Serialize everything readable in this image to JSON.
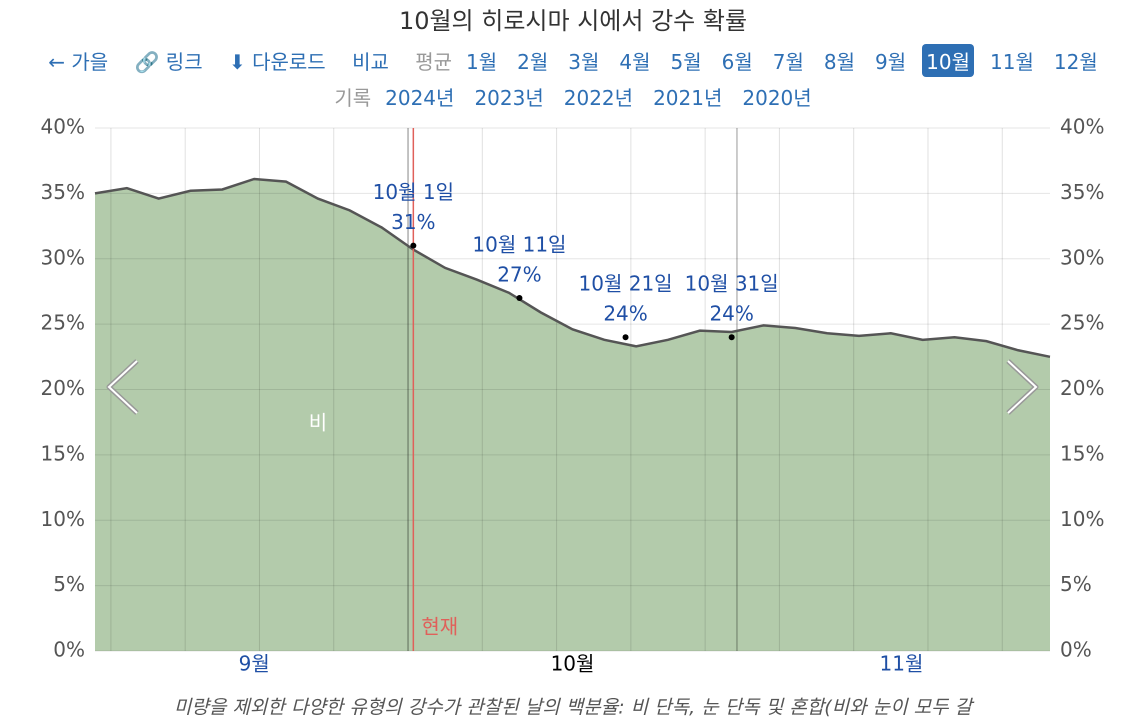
{
  "nav": {
    "back": "가을",
    "link": "링크",
    "download": "다운로드",
    "compare": "비교",
    "average_label": "평균",
    "months": [
      "1월",
      "2월",
      "3월",
      "4월",
      "5월",
      "6월",
      "7월",
      "8월",
      "9월",
      "10월",
      "11월",
      "12월"
    ],
    "selected": "10월",
    "history_label": "기록",
    "years": [
      "2024년",
      "2023년",
      "2022년",
      "2021년",
      "2020년"
    ]
  },
  "chart_data": {
    "type": "area",
    "title": "10월의 히로시마 시에서 강수 확률",
    "xlim": [
      0,
      90
    ],
    "xticks": [
      {
        "value": 15,
        "label": "9월"
      },
      {
        "value": 45,
        "label": "10월"
      },
      {
        "value": 76,
        "label": "11월"
      }
    ],
    "x_gridlines": [
      1.5,
      8.5,
      15.5,
      22.5,
      29.5,
      36.5,
      43.5,
      50.5,
      57.5,
      64.5,
      71.5,
      78.5,
      85.5
    ],
    "month_boundaries": [
      29.5,
      60.5
    ],
    "ylim": [
      0,
      40
    ],
    "yticks": [
      {
        "value": 0,
        "label": "0%"
      },
      {
        "value": 5,
        "label": "5%"
      },
      {
        "value": 10,
        "label": "10%"
      },
      {
        "value": 15,
        "label": "15%"
      },
      {
        "value": 20,
        "label": "20%"
      },
      {
        "value": 25,
        "label": "25%"
      },
      {
        "value": 30,
        "label": "30%"
      },
      {
        "value": 35,
        "label": "35%"
      },
      {
        "value": 40,
        "label": "40%"
      }
    ],
    "grid": true,
    "x": [
      0,
      3,
      6,
      9,
      12,
      15,
      18,
      21,
      24,
      27,
      30,
      33,
      36,
      39,
      42,
      45,
      48,
      51,
      54,
      57,
      60,
      63,
      66,
      69,
      72,
      75,
      78,
      81,
      84,
      87,
      90
    ],
    "series": [
      {
        "name": "비",
        "color": "#b3cbab",
        "line_color": "#555555",
        "values": [
          35.0,
          35.4,
          34.6,
          35.2,
          35.3,
          36.1,
          35.9,
          34.6,
          33.7,
          32.4,
          30.7,
          29.3,
          28.4,
          27.4,
          25.9,
          24.6,
          23.8,
          23.3,
          23.8,
          24.5,
          24.4,
          24.9,
          24.7,
          24.3,
          24.1,
          24.3,
          23.8,
          24.0,
          23.7,
          23.0,
          22.5
        ]
      }
    ],
    "annotations": {
      "dates": [
        "10월 1일",
        "10월 11일",
        "10월 21일",
        "10월 31일"
      ],
      "x": [
        30,
        40,
        50,
        60
      ],
      "values": [
        31,
        27,
        24,
        24
      ],
      "value_labels": [
        "31%",
        "27%",
        "24%",
        "24%"
      ]
    },
    "now": {
      "x": 30,
      "label": "현재",
      "color": "#e0605a"
    },
    "caption": "미량을 제외한 다양한 유형의 강수가 관찰된 날의 백분율: 비 단독, 눈 단독 및 혼합(비와 눈이 모두 갈"
  }
}
